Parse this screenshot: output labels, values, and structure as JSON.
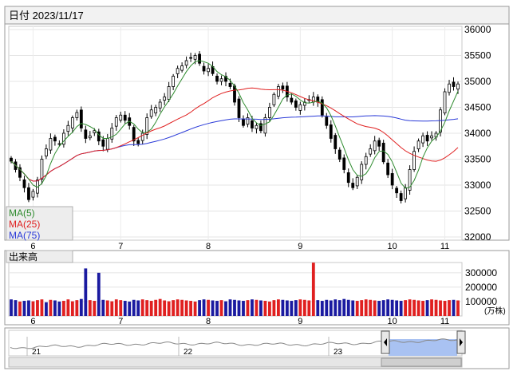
{
  "header": {
    "date_label": "日付 2023/11/17"
  },
  "legend": {
    "items": [
      {
        "label": "MA(5)",
        "color": "#2e8b2e"
      },
      {
        "label": "MA(25)",
        "color": "#e02020"
      },
      {
        "label": "MA(75)",
        "color": "#2a3ad8"
      }
    ]
  },
  "volume_panel": {
    "label": "出来高",
    "unit": "(万株)"
  },
  "colors": {
    "up_volume": "#e02020",
    "down_volume": "#1a1aa0",
    "candle": "#000000",
    "navigator_fill": "#a9c2f2"
  },
  "chart_data": [
    {
      "type": "candlestick",
      "title": "",
      "ylim": [
        32000,
        36000
      ],
      "yticks": [
        32000,
        32500,
        33000,
        33500,
        34000,
        34500,
        35000,
        35500,
        36000
      ],
      "month_labels": [
        "6",
        "7",
        "8",
        "9",
        "10",
        "11"
      ],
      "grid": true,
      "series": [
        {
          "name": "MA(5)"
        },
        {
          "name": "MA(25)"
        },
        {
          "name": "MA(75)"
        }
      ],
      "close": [
        33460,
        33300,
        33150,
        32950,
        32720,
        32880,
        33100,
        33500,
        33700,
        33900,
        33850,
        33800,
        34000,
        34150,
        34300,
        34400,
        34100,
        33900,
        33950,
        34050,
        33850,
        33750,
        33900,
        34100,
        34300,
        34350,
        34250,
        34150,
        33850,
        33800,
        34000,
        34300,
        34450,
        34500,
        34600,
        34700,
        34900,
        35100,
        35250,
        35300,
        35400,
        35450,
        35500,
        35350,
        35200,
        35250,
        35150,
        35000,
        35050,
        35000,
        34900,
        34600,
        34300,
        34150,
        34300,
        34100,
        34150,
        34050,
        34300,
        34500,
        34750,
        34900,
        34850,
        34700,
        34600,
        34500,
        34550,
        34600,
        34650,
        34700,
        34600,
        34350,
        34150,
        33900,
        33700,
        33500,
        33300,
        33050,
        32950,
        33150,
        33400,
        33550,
        33700,
        33850,
        33750,
        33450,
        33200,
        33000,
        32850,
        32700,
        32950,
        33300,
        33650,
        33850,
        33950,
        33850,
        33950,
        34000,
        34450,
        34800,
        34950,
        34900,
        34950
      ]
    },
    {
      "type": "bar",
      "title": "出来高",
      "ylabel": "(万株)",
      "ylim": [
        0,
        360000
      ],
      "yticks": [
        100000,
        200000,
        300000
      ],
      "values": [
        115000,
        110000,
        100000,
        105000,
        108000,
        102000,
        110000,
        115000,
        95000,
        112000,
        108000,
        100000,
        105000,
        115000,
        102000,
        110000,
        118000,
        330000,
        110000,
        105000,
        300000,
        112000,
        108000,
        102000,
        115000,
        110000,
        105000,
        100000,
        112000,
        108000,
        115000,
        110000,
        105000,
        112000,
        118000,
        108000,
        102000,
        110000,
        115000,
        112000,
        108000,
        105000,
        100000,
        110000,
        115000,
        112000,
        108000,
        105000,
        110000,
        102000,
        115000,
        112000,
        108000,
        105000,
        110000,
        115000,
        112000,
        108000,
        105000,
        100000,
        110000,
        115000,
        112000,
        108000,
        105000,
        110000,
        115000,
        112000,
        108000,
        370000,
        110000,
        105000,
        112000,
        108000,
        115000,
        110000,
        118000,
        112000,
        108000,
        105000,
        110000,
        115000,
        112000,
        108000,
        105000,
        110000,
        115000,
        112000,
        108000,
        105000,
        110000,
        115000,
        112000,
        108000,
        105000,
        110000,
        115000,
        112000,
        108000,
        105000,
        110000,
        112000,
        108000
      ],
      "up": [
        0,
        0,
        1,
        0,
        0,
        1,
        1,
        1,
        0,
        1,
        0,
        0,
        1,
        1,
        1,
        1,
        0,
        0,
        1,
        1,
        0,
        0,
        1,
        1,
        1,
        1,
        0,
        0,
        0,
        0,
        1,
        1,
        1,
        1,
        1,
        1,
        1,
        1,
        1,
        1,
        1,
        1,
        1,
        0,
        0,
        1,
        0,
        0,
        1,
        0,
        0,
        0,
        0,
        0,
        1,
        0,
        1,
        0,
        1,
        1,
        1,
        1,
        0,
        0,
        0,
        0,
        1,
        1,
        1,
        1,
        0,
        0,
        0,
        0,
        0,
        0,
        0,
        0,
        0,
        1,
        1,
        1,
        1,
        1,
        0,
        0,
        0,
        0,
        0,
        0,
        1,
        1,
        1,
        1,
        1,
        0,
        1,
        1,
        1,
        1,
        1,
        0,
        1
      ]
    }
  ],
  "navigator": {
    "year_labels": [
      "21",
      "22",
      "23"
    ]
  }
}
